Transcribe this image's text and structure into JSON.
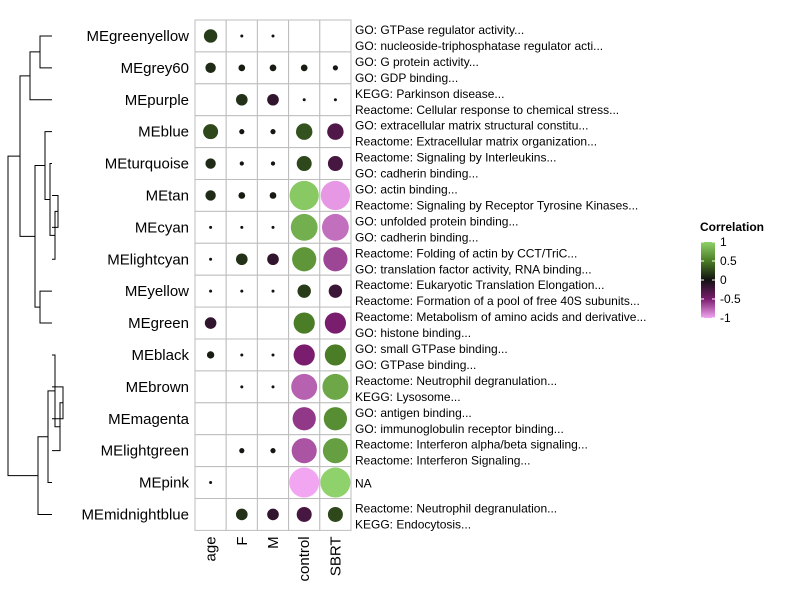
{
  "chart_data": {
    "type": "heatmap",
    "title": "",
    "xlabel": "",
    "ylabel": "",
    "columns": [
      "age",
      "F",
      "M",
      "control",
      "SBRT"
    ],
    "rows": [
      {
        "module": "MEgreenyellow",
        "annotation": [
          "GO: GTPase regulator activity...",
          "GO: nucleoside-triphosphatase regulator acti..."
        ],
        "values": [
          0.2,
          0.01,
          0.01,
          null,
          null
        ]
      },
      {
        "module": "MEgrey60",
        "annotation": [
          "GO: G protein activity...",
          "GO: GDP binding..."
        ],
        "values": [
          0.12,
          0.05,
          0.05,
          0.05,
          0.03
        ]
      },
      {
        "module": "MEpurple",
        "annotation": [
          "KEGG: Parkinson disease...",
          "Reactome: Cellular response to chemical stress..."
        ],
        "values": [
          null,
          0.15,
          -0.15,
          0.01,
          0.01
        ]
      },
      {
        "module": "MEblue",
        "annotation": [
          "GO: extracellular matrix structural constitu...",
          "Reactome: Extracellular matrix organization..."
        ],
        "values": [
          0.25,
          0.03,
          0.03,
          0.3,
          -0.3
        ]
      },
      {
        "module": "MEturquoise",
        "annotation": [
          "Reactome: Signaling by Interleukins...",
          "GO: cadherin binding..."
        ],
        "values": [
          0.12,
          0.02,
          0.02,
          0.25,
          -0.25
        ]
      },
      {
        "module": "MEtan",
        "annotation": [
          "GO: actin binding...",
          "Reactome: Signaling by Receptor Tyrosine Kinases..."
        ],
        "values": [
          0.12,
          0.05,
          0.05,
          0.95,
          -0.95
        ]
      },
      {
        "module": "MEcyan",
        "annotation": [
          "GO: unfolded protein binding...",
          "GO: cadherin binding..."
        ],
        "values": [
          0.01,
          0.01,
          0.01,
          0.8,
          -0.8
        ]
      },
      {
        "module": "MElightcyan",
        "annotation": [
          "Reactome: Folding of actin by CCT/TriC...",
          "GO: translation factor activity, RNA binding..."
        ],
        "values": [
          0.01,
          0.15,
          -0.15,
          0.65,
          -0.65
        ]
      },
      {
        "module": "MEyellow",
        "annotation": [
          "Reactome: Eukaryotic Translation Elongation...",
          "Reactome: Formation of a pool of free 40S subunits..."
        ],
        "values": [
          0.01,
          0.01,
          0.01,
          0.2,
          -0.2
        ]
      },
      {
        "module": "MEgreen",
        "annotation": [
          "Reactome: Metabolism of amino acids and derivative...",
          "GO: histone binding..."
        ],
        "values": [
          -0.15,
          null,
          null,
          0.5,
          -0.5
        ]
      },
      {
        "module": "MEblack",
        "annotation": [
          "GO: small GTPase binding...",
          "GO: GTPase binding..."
        ],
        "values": [
          0.06,
          0.01,
          0.01,
          -0.5,
          0.5
        ]
      },
      {
        "module": "MEbrown",
        "annotation": [
          "Reactome: Neutrophil degranulation...",
          "KEGG: Lysosome..."
        ],
        "values": [
          null,
          0.01,
          0.01,
          -0.75,
          0.75
        ]
      },
      {
        "module": "MEmagenta",
        "annotation": [
          "GO: antigen binding...",
          "GO: immunoglobulin receptor binding..."
        ],
        "values": [
          null,
          null,
          null,
          -0.6,
          0.6
        ]
      },
      {
        "module": "MElightgreen",
        "annotation": [
          "Reactome: Interferon alpha/beta signaling...",
          "Reactome: Interferon Signaling..."
        ],
        "values": [
          null,
          0.03,
          0.03,
          -0.7,
          0.7
        ]
      },
      {
        "module": "MEpink",
        "annotation": [
          "NA"
        ],
        "values": [
          0.01,
          null,
          null,
          -1.0,
          1.0
        ]
      },
      {
        "module": "MEmidnightblue",
        "annotation": [
          "Reactome: Neutrophil degranulation...",
          "KEGG: Endocytosis..."
        ],
        "values": [
          null,
          0.15,
          -0.15,
          -0.25,
          0.25
        ]
      }
    ],
    "legend": {
      "title": "Correlation",
      "ticks": [
        "1",
        "0.5",
        "0",
        "-0.5",
        "-1"
      ],
      "tick_values": [
        1,
        0.5,
        0,
        -0.5,
        -1
      ],
      "range": [
        -1,
        1
      ],
      "colors": {
        "low": "#f2a6f2",
        "mid_low": "#7a1d6e",
        "mid": "#111111",
        "mid_high": "#4a7d25",
        "high": "#8fd16a"
      },
      "placement": "right"
    },
    "grid": true
  }
}
